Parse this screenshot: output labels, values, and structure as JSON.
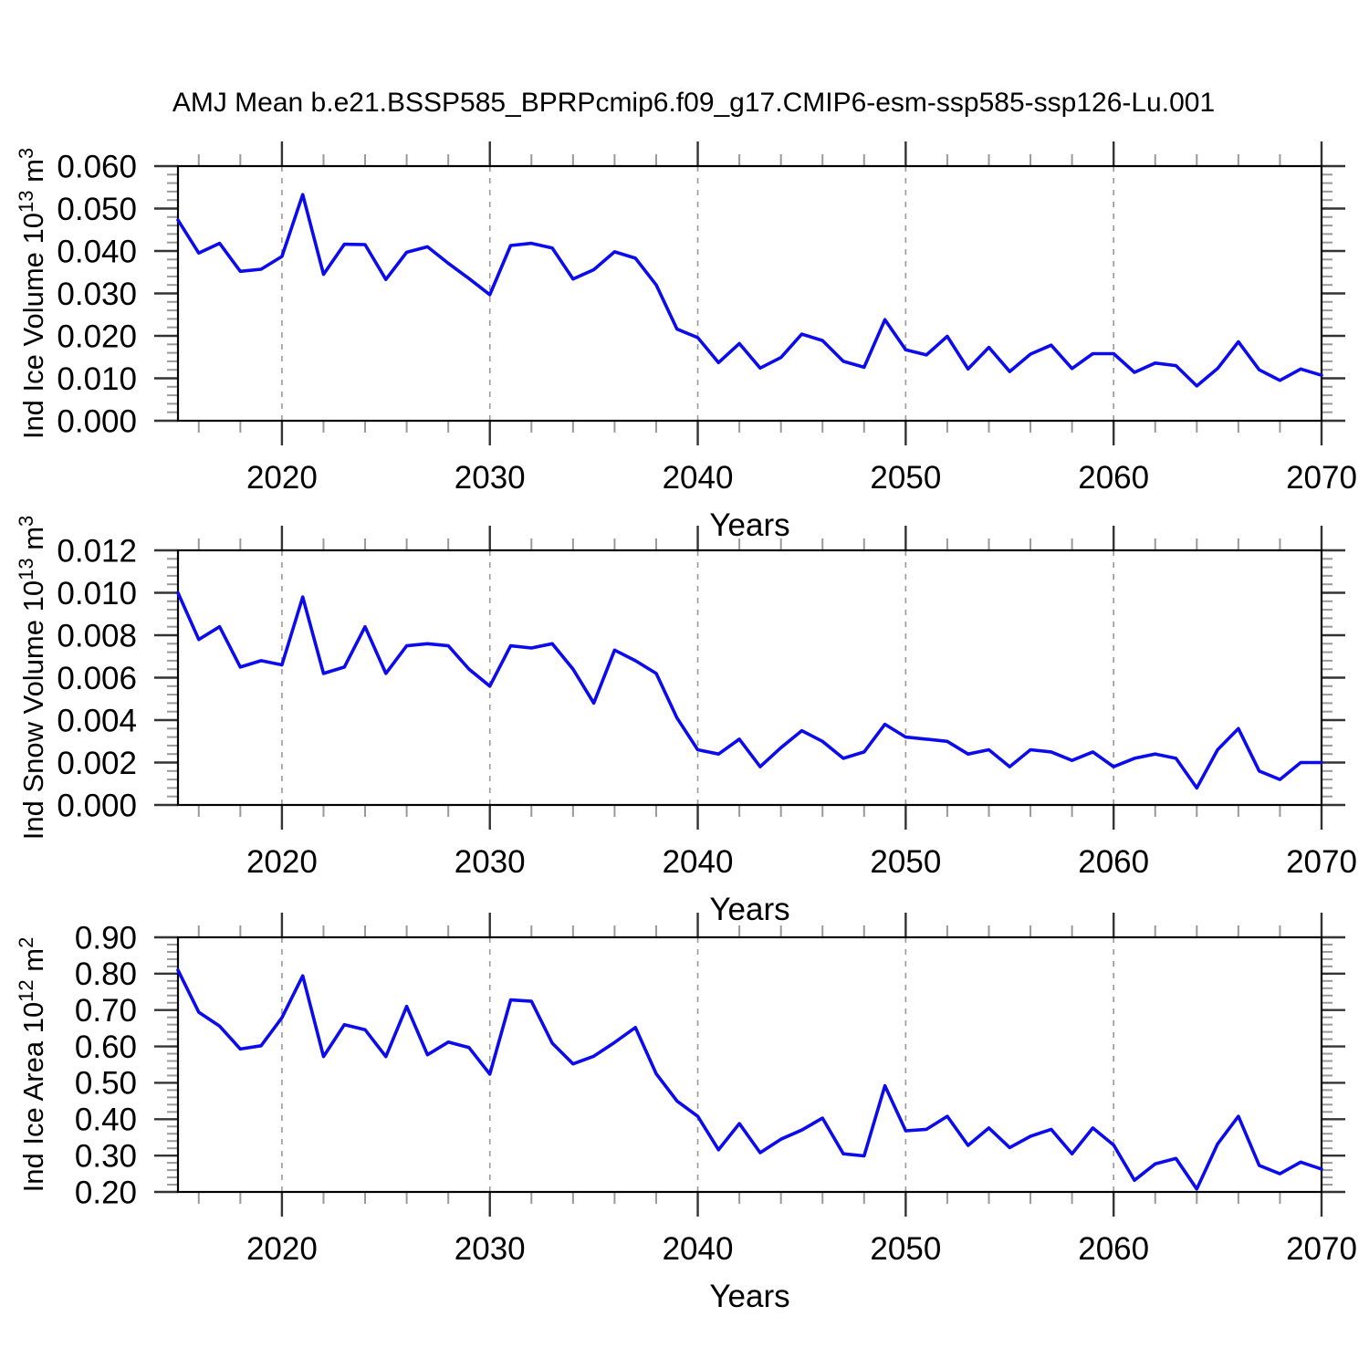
{
  "title": "AMJ Mean b.e21.BSSP585_BPRPcmip6.f09_g17.CMIP6-esm-ssp585-ssp126-Lu.001",
  "colors": {
    "line": "#0b0bee",
    "axis": "#000000",
    "grid": "#999999",
    "tick_major": "#333333",
    "tick_minor": "#999999",
    "text": "#000000",
    "background": "#ffffff"
  },
  "chart_data": [
    {
      "type": "line",
      "name": "ice-volume",
      "ylabel": "Ind Ice Volume 10^13 m^3",
      "xlabel": "Years",
      "legend": "none",
      "grid": "vertical-dashed",
      "xlim": [
        2015,
        2070
      ],
      "ylim": [
        0.0,
        0.06
      ],
      "ytick_step": 0.01,
      "y_minor_divs": 5,
      "ytick_decimals": 3,
      "xticks": [
        2020,
        2030,
        2040,
        2050,
        2060,
        2070
      ],
      "x_minor_step": 2,
      "gridline_years": [
        2020,
        2030,
        2040,
        2050,
        2060
      ],
      "x": [
        2015,
        2016,
        2017,
        2018,
        2019,
        2020,
        2021,
        2022,
        2023,
        2024,
        2025,
        2026,
        2027,
        2028,
        2029,
        2030,
        2031,
        2032,
        2033,
        2034,
        2035,
        2036,
        2037,
        2038,
        2039,
        2040,
        2041,
        2042,
        2043,
        2044,
        2045,
        2046,
        2047,
        2048,
        2049,
        2050,
        2051,
        2052,
        2053,
        2054,
        2055,
        2056,
        2057,
        2058,
        2059,
        2060,
        2061,
        2062,
        2063,
        2064,
        2065,
        2066,
        2067,
        2068,
        2069,
        2070
      ],
      "values": [
        0.0473,
        0.0395,
        0.0418,
        0.0352,
        0.0357,
        0.0387,
        0.0533,
        0.0345,
        0.0416,
        0.0415,
        0.0333,
        0.0397,
        0.041,
        0.0371,
        0.0335,
        0.0297,
        0.0413,
        0.0418,
        0.0407,
        0.0334,
        0.0356,
        0.0398,
        0.0383,
        0.032,
        0.0216,
        0.0196,
        0.0137,
        0.0182,
        0.0124,
        0.0149,
        0.0204,
        0.0189,
        0.014,
        0.0126,
        0.0238,
        0.0167,
        0.0155,
        0.0199,
        0.0122,
        0.0173,
        0.0116,
        0.0157,
        0.0178,
        0.0123,
        0.0158,
        0.0158,
        0.0114,
        0.0136,
        0.013,
        0.0082,
        0.0123,
        0.0186,
        0.012,
        0.0095,
        0.0122,
        0.0107
      ]
    },
    {
      "type": "line",
      "name": "snow-volume",
      "ylabel": "Ind Snow Volume 10^13 m^3",
      "xlabel": "Years",
      "legend": "none",
      "grid": "vertical-dashed",
      "xlim": [
        2015,
        2070
      ],
      "ylim": [
        0.0,
        0.012
      ],
      "ytick_step": 0.002,
      "y_minor_divs": 5,
      "ytick_decimals": 3,
      "xticks": [
        2020,
        2030,
        2040,
        2050,
        2060,
        2070
      ],
      "x_minor_step": 2,
      "gridline_years": [
        2020,
        2030,
        2040,
        2050,
        2060
      ],
      "x": [
        2015,
        2016,
        2017,
        2018,
        2019,
        2020,
        2021,
        2022,
        2023,
        2024,
        2025,
        2026,
        2027,
        2028,
        2029,
        2030,
        2031,
        2032,
        2033,
        2034,
        2035,
        2036,
        2037,
        2038,
        2039,
        2040,
        2041,
        2042,
        2043,
        2044,
        2045,
        2046,
        2047,
        2048,
        2049,
        2050,
        2051,
        2052,
        2053,
        2054,
        2055,
        2056,
        2057,
        2058,
        2059,
        2060,
        2061,
        2062,
        2063,
        2064,
        2065,
        2066,
        2067,
        2068,
        2069,
        2070
      ],
      "values": [
        0.01,
        0.0078,
        0.0084,
        0.0065,
        0.0068,
        0.0066,
        0.0098,
        0.0062,
        0.0065,
        0.0084,
        0.0062,
        0.0075,
        0.0076,
        0.0075,
        0.0064,
        0.0056,
        0.0075,
        0.0074,
        0.0076,
        0.0064,
        0.0048,
        0.0073,
        0.0068,
        0.0062,
        0.0041,
        0.0026,
        0.0024,
        0.0031,
        0.0018,
        0.0027,
        0.0035,
        0.003,
        0.0022,
        0.0025,
        0.0038,
        0.0032,
        0.0031,
        0.003,
        0.0024,
        0.0026,
        0.0018,
        0.0026,
        0.0025,
        0.0021,
        0.0025,
        0.0018,
        0.0022,
        0.0024,
        0.0022,
        0.0008,
        0.0026,
        0.0036,
        0.0016,
        0.0012,
        0.002,
        0.002
      ]
    },
    {
      "type": "line",
      "name": "ice-area",
      "ylabel": "Ind Ice Area 10^12 m^2",
      "xlabel": "Years",
      "legend": "none",
      "grid": "vertical-dashed",
      "xlim": [
        2015,
        2070
      ],
      "ylim": [
        0.2,
        0.9
      ],
      "ytick_step": 0.1,
      "y_minor_divs": 5,
      "ytick_decimals": 2,
      "xticks": [
        2020,
        2030,
        2040,
        2050,
        2060,
        2070
      ],
      "x_minor_step": 2,
      "gridline_years": [
        2020,
        2030,
        2040,
        2050,
        2060
      ],
      "x": [
        2015,
        2016,
        2017,
        2018,
        2019,
        2020,
        2021,
        2022,
        2023,
        2024,
        2025,
        2026,
        2027,
        2028,
        2029,
        2030,
        2031,
        2032,
        2033,
        2034,
        2035,
        2036,
        2037,
        2038,
        2039,
        2040,
        2041,
        2042,
        2043,
        2044,
        2045,
        2046,
        2047,
        2048,
        2049,
        2050,
        2051,
        2052,
        2053,
        2054,
        2055,
        2056,
        2057,
        2058,
        2059,
        2060,
        2061,
        2062,
        2063,
        2064,
        2065,
        2066,
        2067,
        2068,
        2069,
        2070
      ],
      "values": [
        0.81,
        0.694,
        0.656,
        0.593,
        0.602,
        0.679,
        0.794,
        0.572,
        0.66,
        0.646,
        0.572,
        0.71,
        0.577,
        0.612,
        0.597,
        0.524,
        0.728,
        0.724,
        0.609,
        0.552,
        0.573,
        0.611,
        0.652,
        0.525,
        0.45,
        0.408,
        0.316,
        0.388,
        0.308,
        0.345,
        0.37,
        0.403,
        0.305,
        0.299,
        0.492,
        0.368,
        0.372,
        0.408,
        0.328,
        0.376,
        0.322,
        0.353,
        0.372,
        0.305,
        0.376,
        0.329,
        0.232,
        0.277,
        0.292,
        0.208,
        0.332,
        0.408,
        0.273,
        0.25,
        0.282,
        0.263
      ]
    }
  ]
}
